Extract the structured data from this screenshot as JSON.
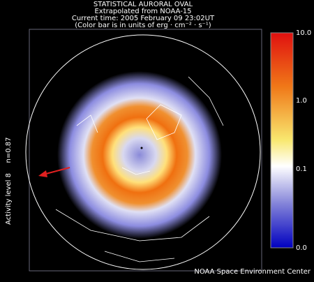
{
  "header": {
    "lines": [
      "STATISTICAL AURORAL OVAL",
      "Extrapolated from NOAA-15",
      "Current time: 2005 February 09 23:02UT",
      "(Color bar is in units of erg · cm⁻² · s⁻¹)"
    ]
  },
  "colorbar": {
    "labels": [
      "10.0",
      "1.0",
      "0.1",
      "0.0"
    ]
  },
  "side": {
    "fit": "n=0.87",
    "activity": "Activity level 8"
  },
  "footer": {
    "credit": "NOAA Space Environment Center"
  }
}
